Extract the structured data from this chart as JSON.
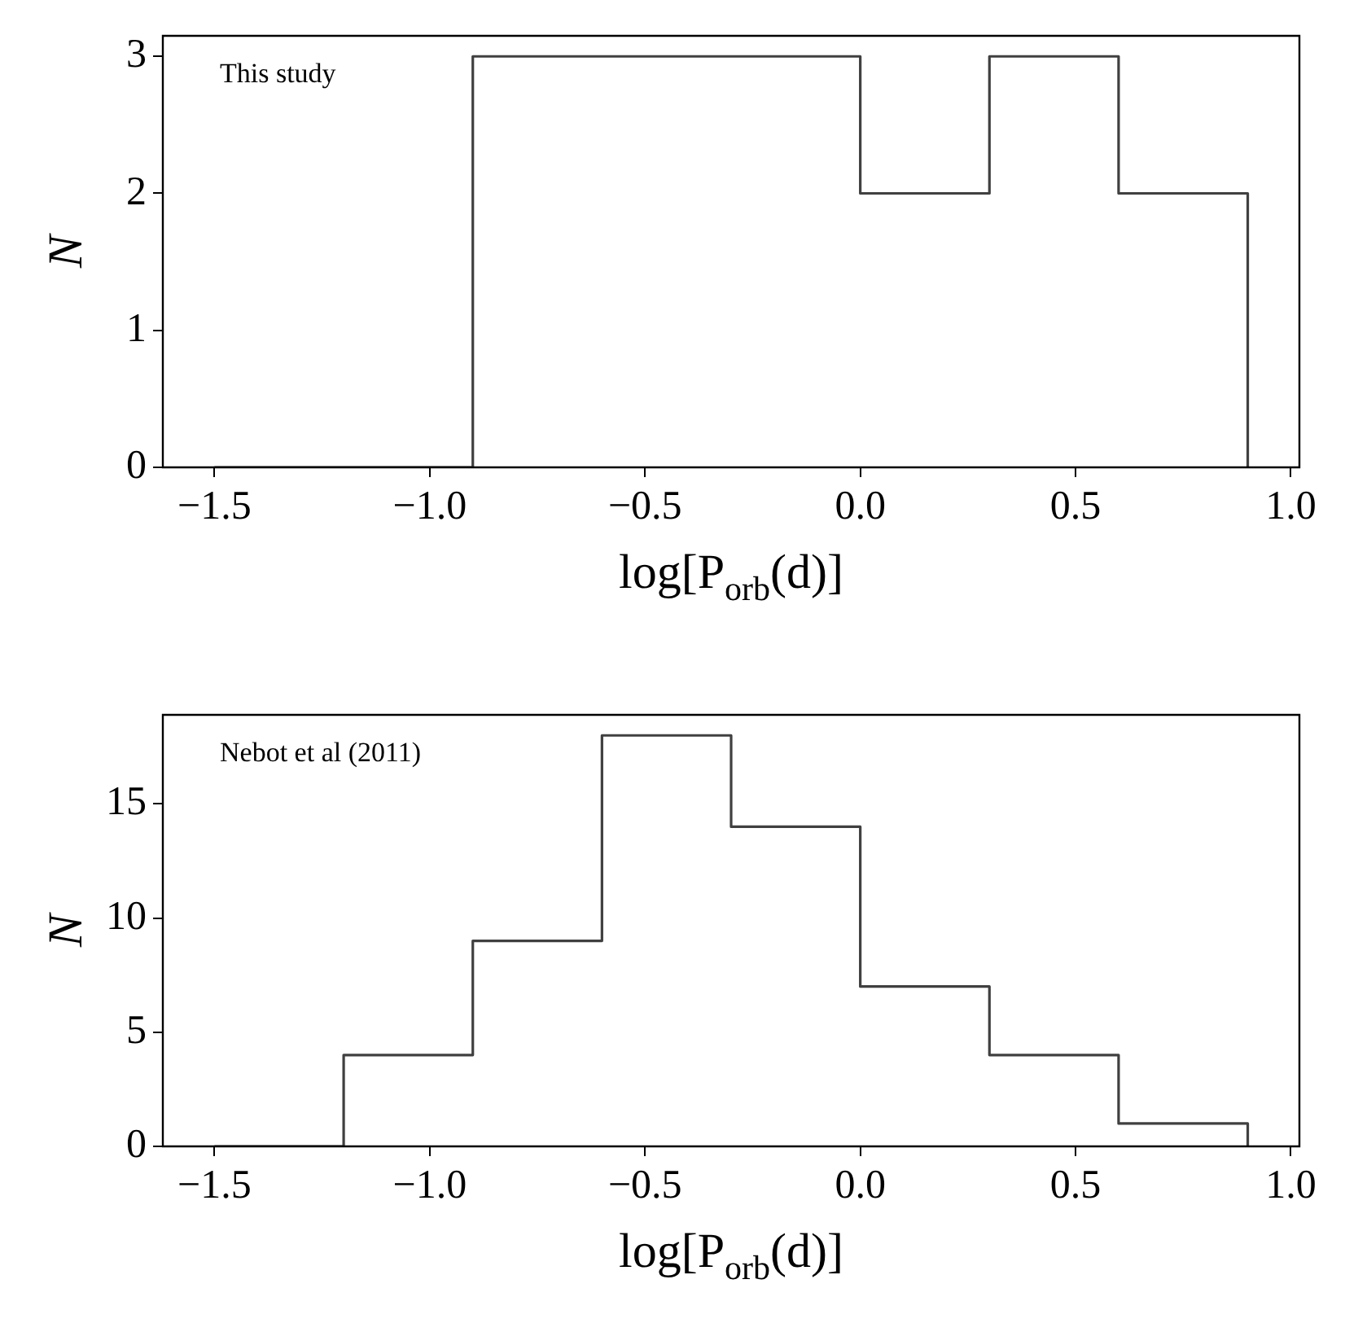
{
  "chart_data": [
    {
      "type": "histogram",
      "bins": [
        -1.5,
        -1.2,
        -0.9,
        -0.6,
        -0.3,
        0.0,
        0.3,
        0.6,
        0.9
      ],
      "values": [
        0,
        0,
        3,
        3,
        3,
        2,
        3,
        2
      ],
      "color": "#404040",
      "xlabel": "log[P$_{orb}$(d)]",
      "ylabel": "N",
      "xlim": [
        -1.62,
        1.02
      ],
      "ylim": [
        0,
        3.15
      ],
      "xticks": [
        {
          "value": -1.5,
          "label": "−1.5"
        },
        {
          "value": -1.0,
          "label": "−1.0"
        },
        {
          "value": -0.5,
          "label": "−0.5"
        },
        {
          "value": 0.0,
          "label": "0.0"
        },
        {
          "value": 0.5,
          "label": "0.5"
        },
        {
          "value": 1.0,
          "label": "1.0"
        }
      ],
      "yticks": [
        0,
        1,
        2,
        3
      ],
      "grid": false,
      "legend": false,
      "annotations": [
        "This study"
      ]
    },
    {
      "type": "histogram",
      "bins": [
        -1.5,
        -1.2,
        -0.9,
        -0.6,
        -0.3,
        0.0,
        0.3,
        0.6,
        0.9
      ],
      "values": [
        0,
        4,
        9,
        18,
        14,
        7,
        4,
        1
      ],
      "color": "#404040",
      "xlabel": "log[P$_{orb}$(d)]",
      "ylabel": "N",
      "xlim": [
        -1.62,
        1.02
      ],
      "ylim": [
        0,
        18.9
      ],
      "xticks": [
        {
          "value": -1.5,
          "label": "−1.5"
        },
        {
          "value": -1.0,
          "label": "−1.0"
        },
        {
          "value": -0.5,
          "label": "−0.5"
        },
        {
          "value": 0.0,
          "label": "0.0"
        },
        {
          "value": 0.5,
          "label": "0.5"
        },
        {
          "value": 1.0,
          "label": "1.0"
        }
      ],
      "yticks": [
        0,
        5,
        10,
        15
      ],
      "grid": false,
      "legend": false,
      "annotations": [
        "Nebot et al (2011)"
      ]
    }
  ]
}
